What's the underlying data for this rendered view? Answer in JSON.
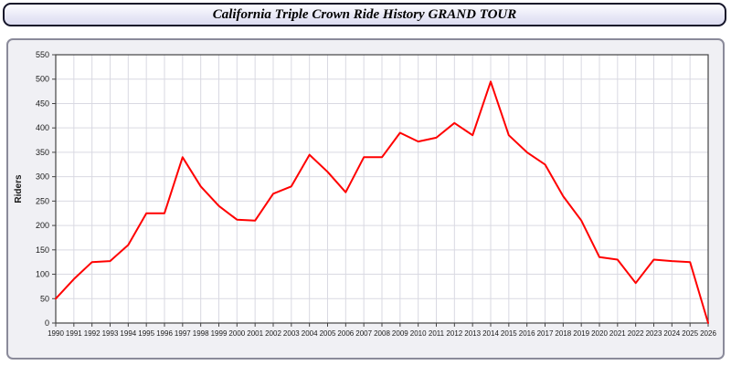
{
  "header": {
    "title": "California Triple Crown Ride History GRAND TOUR"
  },
  "colors": {
    "line": "#ff0000",
    "grid": "#d9d9e2",
    "plot_bg": "#ffffff",
    "panel_bg": "#f0f0f4",
    "axis": "#444444"
  },
  "chart_data": {
    "type": "line",
    "title": "California Triple Crown Ride History GRAND TOUR",
    "xlabel": "",
    "ylabel": "Riders",
    "ylim": [
      0,
      550
    ],
    "ytick_step": 50,
    "grid": true,
    "legend": "none",
    "x": [
      1990,
      1991,
      1992,
      1993,
      1994,
      1995,
      1996,
      1997,
      1998,
      1999,
      2000,
      2001,
      2002,
      2003,
      2004,
      2005,
      2006,
      2007,
      2008,
      2009,
      2010,
      2011,
      2012,
      2013,
      2014,
      2015,
      2016,
      2017,
      2018,
      2019,
      2020,
      2021,
      2022,
      2023,
      2024,
      2025,
      2026
    ],
    "series": [
      {
        "name": "Riders",
        "values": [
          50,
          90,
          125,
          127,
          160,
          225,
          225,
          340,
          280,
          240,
          212,
          210,
          265,
          280,
          345,
          310,
          268,
          340,
          340,
          390,
          372,
          380,
          410,
          385,
          495,
          385,
          350,
          325,
          260,
          210,
          135,
          130,
          82,
          130,
          127,
          125,
          0
        ]
      }
    ]
  }
}
